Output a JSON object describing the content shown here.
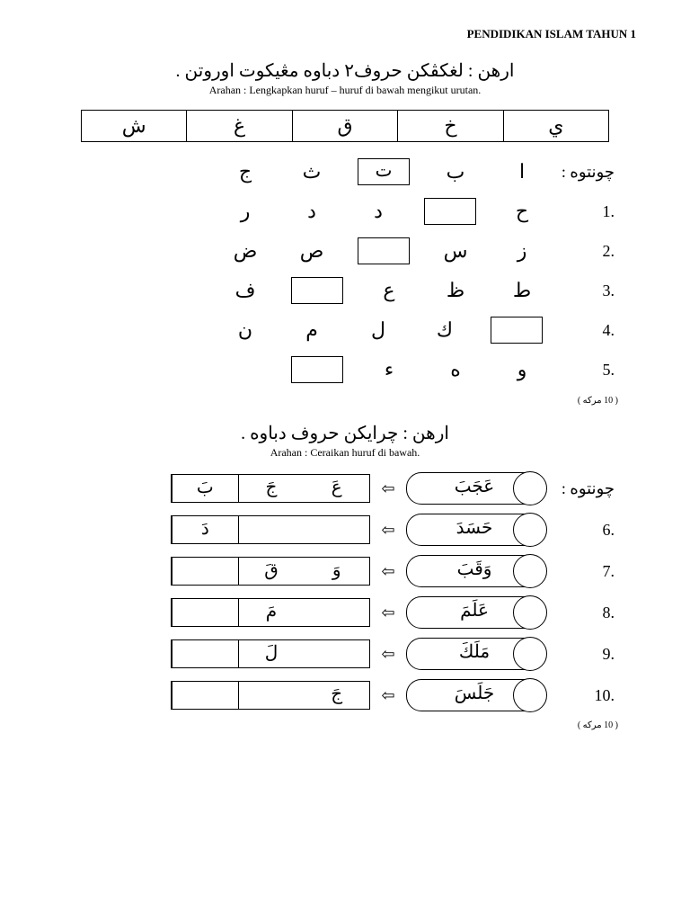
{
  "header": "PENDIDIKAN ISLAM TAHUN 1",
  "section1": {
    "instruction_ar": "ارهن : لغكڤكن حروف٢ دباوه مڠيكوت اوروتن .",
    "instruction_rm": "Arahan : Lengkapkan huruf – huruf di bawah mengikut urutan.",
    "ref_row": [
      "ش",
      "غ",
      "ق",
      "خ",
      "ي"
    ],
    "example_label": "چونتوه :",
    "rows": [
      {
        "label": "چونتوه :",
        "cells": [
          {
            "t": "text",
            "v": "ا"
          },
          {
            "t": "text",
            "v": "ب"
          },
          {
            "t": "box",
            "v": "ت"
          },
          {
            "t": "text",
            "v": "ث"
          },
          {
            "t": "text",
            "v": "ج"
          }
        ]
      },
      {
        "label": ".1",
        "cells": [
          {
            "t": "text",
            "v": "ح"
          },
          {
            "t": "box",
            "v": ""
          },
          {
            "t": "text",
            "v": "د"
          },
          {
            "t": "text",
            "v": "د"
          },
          {
            "t": "text",
            "v": "ر"
          }
        ]
      },
      {
        "label": ".2",
        "cells": [
          {
            "t": "text",
            "v": "ز"
          },
          {
            "t": "text",
            "v": "س"
          },
          {
            "t": "box",
            "v": ""
          },
          {
            "t": "text",
            "v": "ص"
          },
          {
            "t": "text",
            "v": "ض"
          }
        ]
      },
      {
        "label": ".3",
        "cells": [
          {
            "t": "text",
            "v": "ط"
          },
          {
            "t": "text",
            "v": "ظ"
          },
          {
            "t": "text",
            "v": "ع"
          },
          {
            "t": "box",
            "v": ""
          },
          {
            "t": "text",
            "v": "ف"
          }
        ]
      },
      {
        "label": ".4",
        "cells": [
          {
            "t": "box",
            "v": ""
          },
          {
            "t": "text",
            "v": "ك"
          },
          {
            "t": "text",
            "v": "ل"
          },
          {
            "t": "text",
            "v": "م"
          },
          {
            "t": "text",
            "v": "ن"
          }
        ]
      },
      {
        "label": ".5",
        "cells": [
          {
            "t": "text",
            "v": "و"
          },
          {
            "t": "text",
            "v": "ه"
          },
          {
            "t": "text",
            "v": "ء"
          },
          {
            "t": "box",
            "v": ""
          },
          {
            "t": "text",
            "v": ""
          }
        ]
      }
    ],
    "marks": "( 10 مركه )"
  },
  "section2": {
    "instruction_ar": "ارهن : چرايكن حروف دباوه .",
    "instruction_rm": "Arahan : Ceraikan huruf di bawah.",
    "rows": [
      {
        "label": "چونتوه :",
        "word": "عَجَبَ",
        "answers": [
          "عَ",
          "جَ",
          "بَ"
        ]
      },
      {
        "label": ".6",
        "word": "حَسَدَ",
        "answers": [
          "",
          "",
          "دَ"
        ]
      },
      {
        "label": ".7",
        "word": "وَقَبَ",
        "answers": [
          "وَ",
          "قَ",
          ""
        ]
      },
      {
        "label": ".8",
        "word": "عَلَمَ",
        "answers": [
          "",
          "مَ",
          ""
        ]
      },
      {
        "label": ".9",
        "word": "مَلَكَ",
        "answers": [
          "",
          "لَ",
          ""
        ]
      },
      {
        "label": ".10",
        "word": "جَلَسَ",
        "answers": [
          "جَ",
          "",
          ""
        ]
      }
    ],
    "marks": "( 10 مركه )"
  },
  "arrow_glyph": "⇦",
  "colors": {
    "text": "#000000",
    "bg": "#ffffff",
    "border": "#000000"
  }
}
